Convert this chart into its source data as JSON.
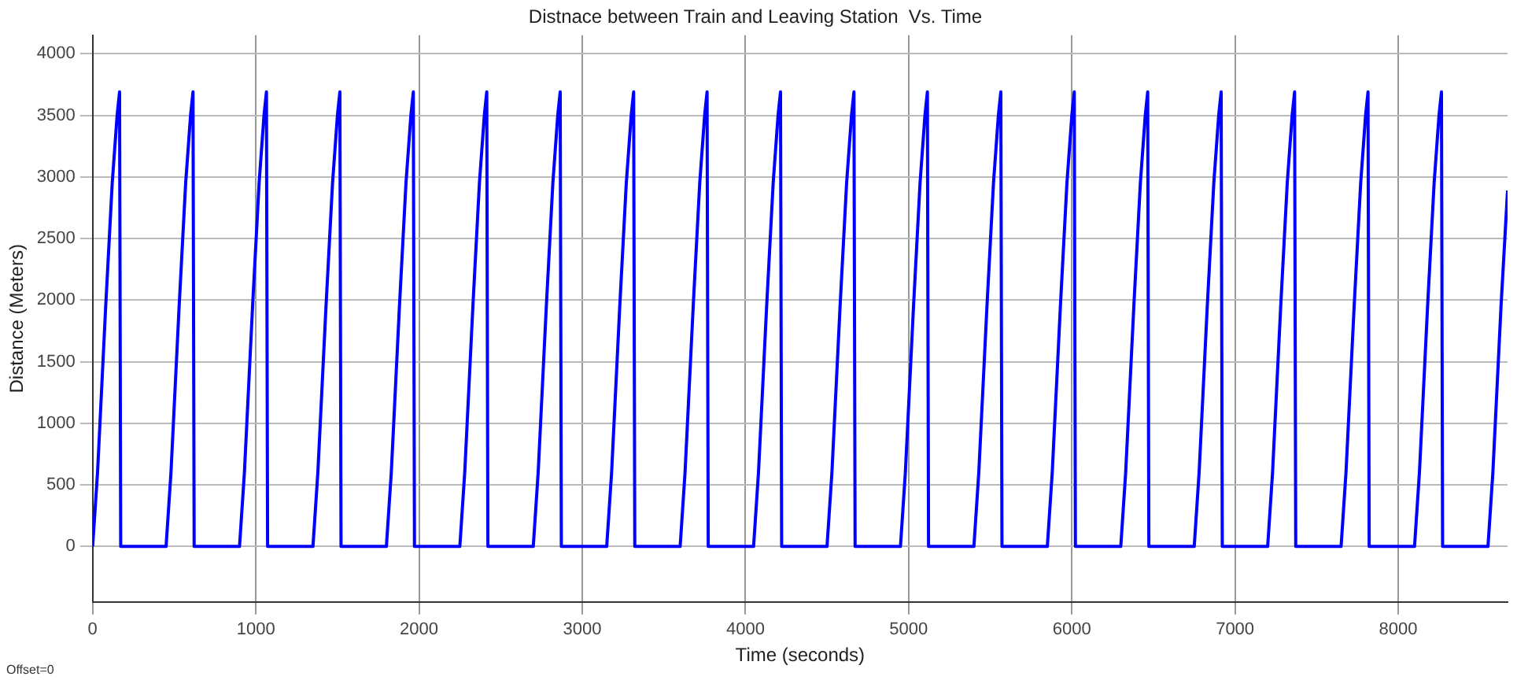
{
  "chart_data": {
    "type": "line",
    "title": "Distnace between Train and Leaving Station  Vs. Time",
    "xlabel": "Time (seconds)",
    "ylabel": "Distance (Meters)",
    "annotations": [
      "Offset=0"
    ],
    "x": [
      0,
      30,
      80,
      120,
      150,
      165,
      172,
      450,
      480,
      530,
      570,
      600,
      615,
      622,
      900,
      930,
      980,
      1020,
      1050,
      1065,
      1072,
      1350,
      1380,
      1430,
      1470,
      1500,
      1515,
      1522,
      1800,
      1830,
      1880,
      1920,
      1950,
      1965,
      1972,
      2250,
      2280,
      2330,
      2370,
      2400,
      2415,
      2422,
      2700,
      2730,
      2780,
      2820,
      2850,
      2865,
      2872,
      3150,
      3180,
      3230,
      3270,
      3300,
      3315,
      3322,
      3600,
      3630,
      3680,
      3720,
      3750,
      3765,
      3772,
      4050,
      4080,
      4130,
      4170,
      4200,
      4215,
      4222,
      4500,
      4530,
      4580,
      4620,
      4650,
      4665,
      4672,
      4950,
      4980,
      5030,
      5070,
      5100,
      5115,
      5122,
      5400,
      5430,
      5480,
      5520,
      5550,
      5565,
      5572,
      5850,
      5880,
      5930,
      5970,
      6000,
      6015,
      6022,
      6300,
      6330,
      6380,
      6420,
      6450,
      6465,
      6472,
      6750,
      6780,
      6830,
      6870,
      6900,
      6915,
      6922,
      7200,
      7230,
      7280,
      7320,
      7350,
      7365,
      7372,
      7650,
      7680,
      7730,
      7770,
      7800,
      7815,
      7822,
      8100,
      8130,
      8180,
      8220,
      8250,
      8265,
      8272,
      8550,
      8580,
      8630,
      8670
    ],
    "series": [
      {
        "color": "#0000ff",
        "values": [
          0,
          600,
          1950,
          2950,
          3500,
          3690,
          0,
          0,
          600,
          1950,
          2950,
          3500,
          3690,
          0,
          0,
          600,
          1950,
          2950,
          3500,
          3690,
          0,
          0,
          600,
          1950,
          2950,
          3500,
          3690,
          0,
          0,
          600,
          1950,
          2950,
          3500,
          3690,
          0,
          0,
          600,
          1950,
          2950,
          3500,
          3690,
          0,
          0,
          600,
          1950,
          2950,
          3500,
          3690,
          0,
          0,
          600,
          1950,
          2950,
          3500,
          3690,
          0,
          0,
          600,
          1950,
          2950,
          3500,
          3690,
          0,
          0,
          600,
          1950,
          2950,
          3500,
          3690,
          0,
          0,
          600,
          1950,
          2950,
          3500,
          3690,
          0,
          0,
          600,
          1950,
          2950,
          3500,
          3690,
          0,
          0,
          600,
          1950,
          2950,
          3500,
          3690,
          0,
          0,
          600,
          1950,
          2950,
          3500,
          3690,
          0,
          0,
          600,
          1950,
          2950,
          3500,
          3690,
          0,
          0,
          600,
          1950,
          2950,
          3500,
          3690,
          0,
          0,
          600,
          1950,
          2950,
          3500,
          3690,
          0,
          0,
          600,
          1950,
          2950,
          3500,
          3690,
          0,
          0,
          600,
          1950,
          2950,
          3500,
          3690,
          0,
          0,
          600,
          1950,
          2890
        ]
      }
    ],
    "xlim": [
      0,
      8670
    ],
    "ylim": [
      -450,
      4150
    ],
    "xticks": [
      0,
      1000,
      2000,
      3000,
      4000,
      5000,
      6000,
      7000,
      8000
    ],
    "yticks": [
      0,
      500,
      1000,
      1500,
      2000,
      2500,
      3000,
      3500,
      4000
    ],
    "grid": true,
    "legend": false,
    "marker": "none",
    "line_style": "solid"
  }
}
